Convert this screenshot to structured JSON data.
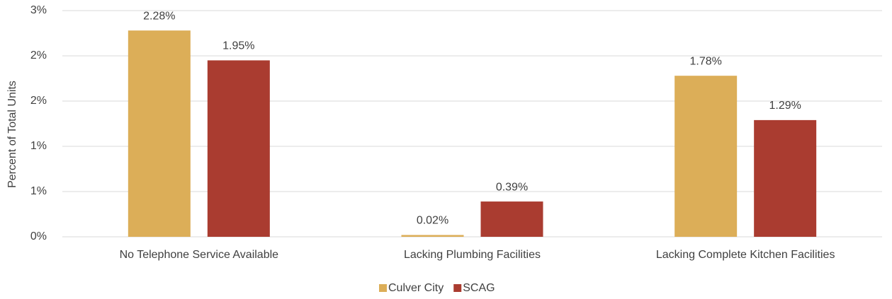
{
  "chart_data": {
    "type": "bar",
    "y_axis_label": "Percent of Total Units",
    "categories": [
      "No Telephone Service Available",
      "Lacking Plumbing Facilities",
      "Lacking Complete Kitchen Facilities"
    ],
    "series": [
      {
        "name": "Culver City",
        "color": "#dcae58",
        "values": [
          2.28,
          0.02,
          1.78
        ],
        "value_labels": [
          "2.28%",
          "0.02%",
          "1.78%"
        ]
      },
      {
        "name": "SCAG",
        "color": "#aa3c30",
        "values": [
          1.95,
          0.39,
          1.29
        ],
        "value_labels": [
          "1.95%",
          "0.39%",
          "1.29%"
        ]
      }
    ],
    "ylim": [
      0,
      2.5
    ],
    "yticks": [
      {
        "value": 0,
        "label": "0%"
      },
      {
        "value": 0.5,
        "label": "1%"
      },
      {
        "value": 1,
        "label": "1%"
      },
      {
        "value": 1.5,
        "label": "2%"
      },
      {
        "value": 2,
        "label": "2%"
      },
      {
        "value": 2.5,
        "label": "3%"
      }
    ],
    "grid": true,
    "legend": "bottom"
  }
}
